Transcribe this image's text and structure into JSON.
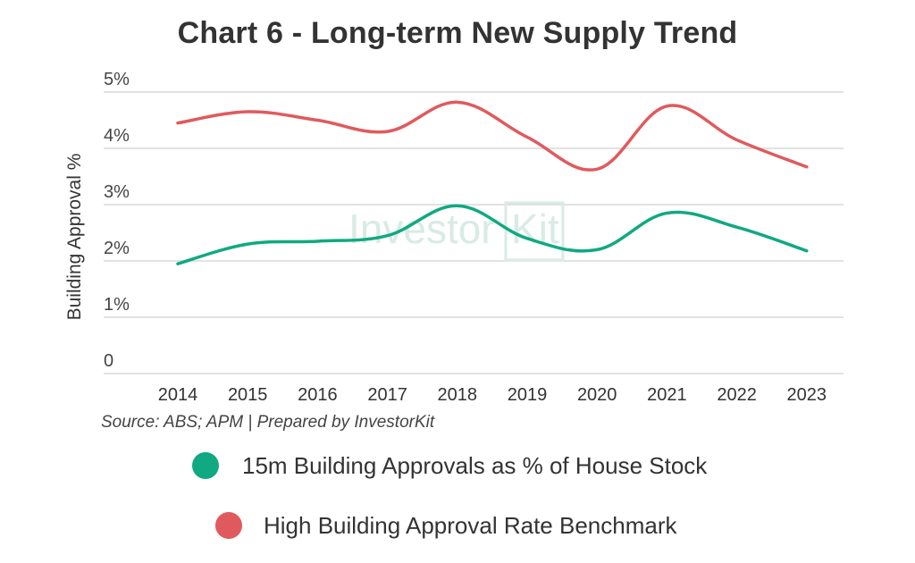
{
  "chart_data": {
    "type": "line",
    "title": "Chart 6 - Long-term New Supply Trend",
    "ylabel": "Building Approval %",
    "xlabel": "",
    "x": [
      "2014",
      "2015",
      "2016",
      "2017",
      "2018",
      "2019",
      "2020",
      "2021",
      "2022",
      "2023"
    ],
    "yticks": [
      "0",
      "1%",
      "2%",
      "3%",
      "4%",
      "5%"
    ],
    "ylim": [
      0,
      5
    ],
    "grid": "horizontal",
    "series": [
      {
        "name": "15m Building Approvals as % of House Stock",
        "color": "#10a981",
        "values": [
          1.95,
          2.3,
          2.35,
          2.45,
          2.98,
          2.4,
          2.2,
          2.85,
          2.6,
          2.18
        ]
      },
      {
        "name": "High Building Approval Rate Benchmark",
        "color": "#e05a5d",
        "values": [
          4.45,
          4.65,
          4.5,
          4.3,
          4.82,
          4.2,
          3.63,
          4.75,
          4.15,
          3.67
        ]
      }
    ],
    "source": "Source: ABS; APM | Prepared by InvestorKit",
    "watermark": "InvestorKit"
  }
}
